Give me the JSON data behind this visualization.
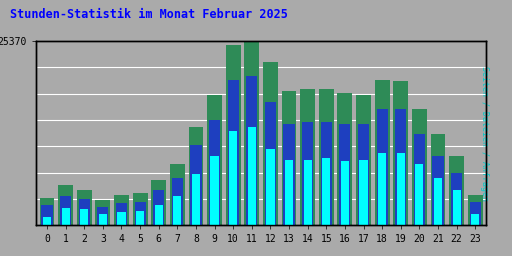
{
  "title": "Stunden-Statistik im Monat Februar 2025",
  "title_color": "#0000FF",
  "ylabel_right": "Seiten / Dateien / Anfragen",
  "hours": [
    0,
    1,
    2,
    3,
    4,
    5,
    6,
    7,
    8,
    9,
    10,
    11,
    12,
    13,
    14,
    15,
    16,
    17,
    18,
    19,
    20,
    21,
    22,
    23
  ],
  "anfragen": [
    3800,
    5500,
    4800,
    3500,
    4200,
    4500,
    6200,
    8500,
    13500,
    18000,
    24800,
    25370,
    22500,
    18500,
    18800,
    18800,
    18200,
    18000,
    20000,
    19800,
    16000,
    12500,
    9500,
    4200
  ],
  "dateien": [
    2800,
    4000,
    3600,
    2500,
    3000,
    3200,
    4800,
    6500,
    11000,
    14500,
    20000,
    20500,
    17000,
    14000,
    14200,
    14200,
    14000,
    14000,
    16000,
    16000,
    12500,
    9500,
    7200,
    3200
  ],
  "seiten": [
    1200,
    2400,
    2200,
    1600,
    1800,
    1900,
    2800,
    4000,
    7000,
    9500,
    13000,
    13500,
    10500,
    9000,
    9000,
    9200,
    8800,
    9000,
    10000,
    10000,
    8500,
    6500,
    4800,
    1600
  ],
  "color_anfragen": "#2E8B57",
  "color_dateien": "#1E3FBF",
  "color_seiten": "#00FFFF",
  "bar_width": 0.8,
  "ylim_max": 25370,
  "bg_color": "#aaaaaa",
  "plot_bg_color": "#aaaaaa",
  "border_color": "#000000",
  "right_label_color": "#00CCCC",
  "grid_lines": 8
}
